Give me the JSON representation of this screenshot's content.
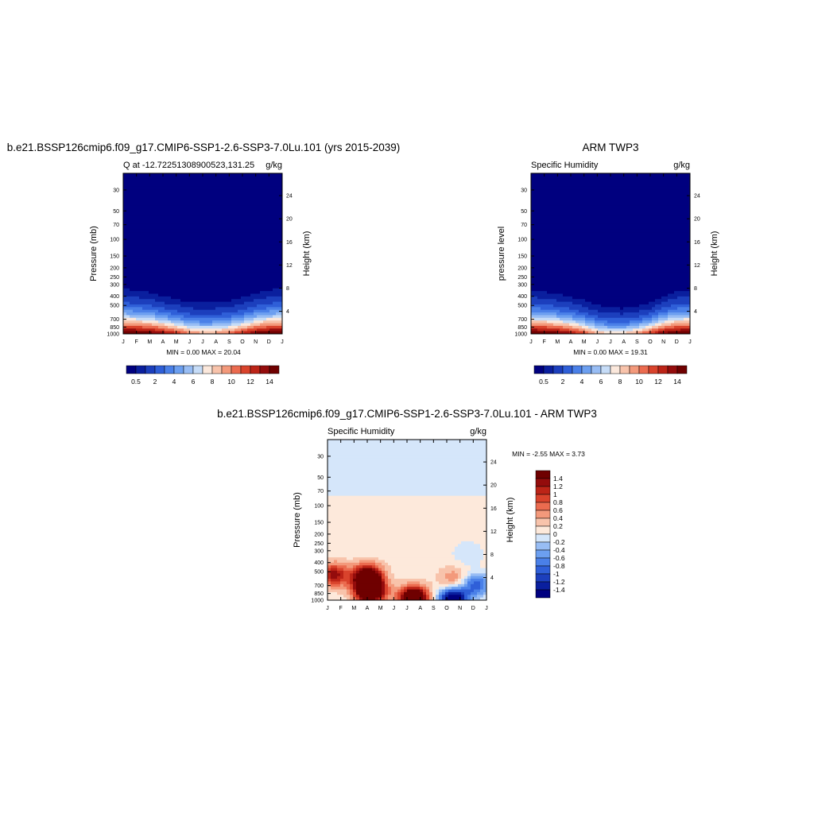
{
  "colors": {
    "mean_palette": [
      "#00007f",
      "#0a1f9e",
      "#1c3fbd",
      "#2f5fd8",
      "#4a80e8",
      "#6c9ff0",
      "#98bdf4",
      "#c6dcf7",
      "#fbe8dc",
      "#f8c3ab",
      "#f3997b",
      "#eb6b4f",
      "#d9432c",
      "#bc2417",
      "#940c0c",
      "#6f0000"
    ],
    "diff_palette": [
      "#00007f",
      "#0a1f9e",
      "#1c3fbd",
      "#2f5fd8",
      "#4a80e8",
      "#6c9ff0",
      "#98bdf4",
      "#d5e6fa",
      "#fde9db",
      "#f8c3ab",
      "#f3997b",
      "#eb6b4f",
      "#d9432c",
      "#bc2417",
      "#940c0c",
      "#6f0000"
    ]
  },
  "chart_data": [
    {
      "type": "heatmap",
      "title": "b.e21.BSSP126cmip6.f09_g17.CMIP6-SSP1-2.6-SSP3-7.0Lu.101 (yrs 2015-2039)",
      "subtitle_left": "Q at -12.72251308900523,131.25",
      "subtitle_right": "g/kg",
      "ylabel": "Pressure (mb)",
      "y2label": "Height (km)",
      "x_ticks": [
        "J",
        "F",
        "M",
        "A",
        "M",
        "J",
        "J",
        "A",
        "S",
        "O",
        "N",
        "D",
        "J"
      ],
      "y_ticks": [
        "30",
        "50",
        "70",
        "100",
        "150",
        "200",
        "250",
        "300",
        "400",
        "500",
        "700",
        "850",
        "1000"
      ],
      "y_values": [
        30,
        50,
        70,
        100,
        150,
        200,
        250,
        300,
        400,
        500,
        700,
        850,
        1000
      ],
      "y2_ticks": [
        "4",
        "8",
        "12",
        "16",
        "20",
        "24"
      ],
      "y2_values": [
        4,
        8,
        12,
        16,
        20,
        24
      ],
      "stats": "MIN =   0.00 MAX =  20.04",
      "colorbar_labels": [
        "0.5",
        "2",
        "4",
        "6",
        "8",
        "10",
        "12",
        "14"
      ],
      "field": {
        "moist_top_mb": [
          290,
          298,
          318,
          350,
          375,
          405,
          412,
          405,
          390,
          360,
          325,
          295,
          290
        ],
        "surface_max_gkg": [
          16.0,
          15.8,
          15.2,
          14.2,
          12.5,
          10.5,
          9.5,
          9.8,
          11.0,
          12.8,
          14.8,
          15.8,
          16.0
        ]
      }
    },
    {
      "type": "heatmap",
      "title": "ARM TWP3",
      "subtitle_left": "Specific Humidity",
      "subtitle_right": "g/kg",
      "ylabel": "pressure level",
      "y2label": "Height (km)",
      "x_ticks": [
        "J",
        "F",
        "M",
        "A",
        "M",
        "J",
        "J",
        "A",
        "S",
        "O",
        "N",
        "D",
        "J"
      ],
      "y_ticks": [
        "30",
        "50",
        "70",
        "100",
        "150",
        "200",
        "250",
        "300",
        "400",
        "500",
        "700",
        "850",
        "1000"
      ],
      "y_values": [
        30,
        50,
        70,
        100,
        150,
        200,
        250,
        300,
        400,
        500,
        700,
        850,
        1000
      ],
      "y2_ticks": [
        "4",
        "8",
        "12",
        "16",
        "20",
        "24"
      ],
      "y2_values": [
        4,
        8,
        12,
        16,
        20,
        24
      ],
      "stats": "MIN =   0.00 MAX =  19.31",
      "colorbar_labels": [
        "0.5",
        "2",
        "4",
        "6",
        "8",
        "10",
        "12",
        "14"
      ],
      "field": {
        "moist_top_mb": [
          300,
          310,
          330,
          355,
          390,
          440,
          470,
          480,
          460,
          420,
          350,
          305,
          300
        ],
        "surface_max_gkg": [
          16.0,
          15.8,
          15.0,
          13.8,
          12.0,
          9.5,
          8.2,
          8.5,
          10.0,
          12.5,
          14.8,
          15.8,
          16.0
        ]
      }
    },
    {
      "type": "heatmap",
      "title": "b.e21.BSSP126cmip6.f09_g17.CMIP6-SSP1-2.6-SSP3-7.0Lu.101 - ARM TWP3",
      "subtitle_left": "Specific Humidity",
      "subtitle_right": "g/kg",
      "ylabel": "Pressure (mb)",
      "y2label": "Height (km)",
      "x_ticks": [
        "J",
        "F",
        "M",
        "A",
        "M",
        "J",
        "J",
        "A",
        "S",
        "O",
        "N",
        "D",
        "J"
      ],
      "y_ticks": [
        "30",
        "50",
        "70",
        "100",
        "150",
        "200",
        "250",
        "300",
        "400",
        "500",
        "700",
        "850",
        "1000"
      ],
      "y_values": [
        30,
        50,
        70,
        100,
        150,
        200,
        250,
        300,
        400,
        500,
        700,
        850,
        1000
      ],
      "y2_ticks": [
        "4",
        "8",
        "12",
        "16",
        "20",
        "24"
      ],
      "y2_values": [
        4,
        8,
        12,
        16,
        20,
        24
      ],
      "stats": "MIN =  -2.55 MAX =   3.73",
      "colorbar_labels": [
        "1.4",
        "1.2",
        "1",
        "0.8",
        "0.6",
        "0.4",
        "0.2",
        "0",
        "-0.2",
        "-0.4",
        "-0.6",
        "-0.8",
        "-1",
        "-1.2",
        "-1.4"
      ],
      "field": {
        "upper_negative_below_mb": 80,
        "features": [
          {
            "month": 0.5,
            "p_mb": 540,
            "value": 1.2
          },
          {
            "month": 3.0,
            "p_mb": 560,
            "value": 2.0
          },
          {
            "month": 3.2,
            "p_mb": 800,
            "value": 2.5
          },
          {
            "month": 6.5,
            "p_mb": 950,
            "value": 2.2
          },
          {
            "month": 9.5,
            "p_mb": 600,
            "value": 0.5
          },
          {
            "month": 10.6,
            "p_mb": 320,
            "value": -0.3
          },
          {
            "month": 11.2,
            "p_mb": 690,
            "value": -1.0
          },
          {
            "month": 9.5,
            "p_mb": 985,
            "value": -2.0
          }
        ]
      }
    }
  ]
}
